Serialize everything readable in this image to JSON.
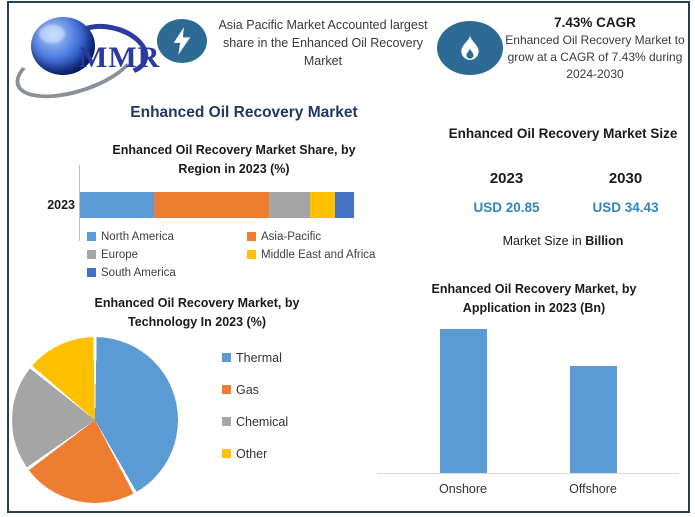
{
  "header": {
    "logo_text": "MMR",
    "highlight1": {
      "text": "Asia Pacific Market Accounted largest share in the Enhanced Oil Recovery Market"
    },
    "highlight2": {
      "title": "7.43% CAGR",
      "text": "Enhanced Oil Recovery Market to grow at a CAGR of 7.43% during 2024-2030"
    }
  },
  "main_title": "Enhanced Oil Recovery Market",
  "market_size_panel": {
    "title": "Enhanced Oil Recovery Market Size",
    "year_start": "2023",
    "year_end": "2030",
    "value_start": "USD 20.85",
    "value_end": "USD 34.43",
    "caption_prefix": "Market Size in ",
    "caption_bold": "Billion"
  },
  "colors": {
    "frame_border": "#24414F",
    "accent_navy": "#1F3864",
    "value_blue": "#2E86C1",
    "icon_circle": "#2E6B94"
  },
  "chart_data": [
    {
      "type": "bar",
      "subtype": "stacked-horizontal",
      "title": "Enhanced Oil Recovery Market Share, by Region in 2023 (%)",
      "categories": [
        "2023"
      ],
      "series": [
        {
          "name": "North America",
          "values": [
            27
          ],
          "color": "#5B9BD5"
        },
        {
          "name": "Asia-Pacific",
          "values": [
            42
          ],
          "color": "#ED7D31"
        },
        {
          "name": "Europe",
          "values": [
            15
          ],
          "color": "#A5A5A5"
        },
        {
          "name": "Middle East and Africa",
          "values": [
            9
          ],
          "color": "#FFC000"
        },
        {
          "name": "South America",
          "values": [
            7
          ],
          "color": "#4472C4"
        }
      ],
      "xlim": [
        0,
        100
      ],
      "legend_position": "bottom"
    },
    {
      "type": "pie",
      "title": "Enhanced Oil Recovery Market, by Technology In 2023 (%)",
      "labels": [
        "Thermal",
        "Gas",
        "Chemical",
        "Other"
      ],
      "values": [
        42,
        23,
        21,
        14
      ],
      "colors": [
        "#5B9BD5",
        "#ED7D31",
        "#A5A5A5",
        "#FFC000"
      ],
      "legend_position": "right"
    },
    {
      "type": "bar",
      "title": "Enhanced Oil Recovery Market, by Application in 2023 (Bn)",
      "categories": [
        "Onshore",
        "Offshore"
      ],
      "values": [
        12,
        8.9
      ],
      "ylim": [
        0,
        12.5
      ],
      "color": "#5B9BD5",
      "grid": false
    }
  ]
}
